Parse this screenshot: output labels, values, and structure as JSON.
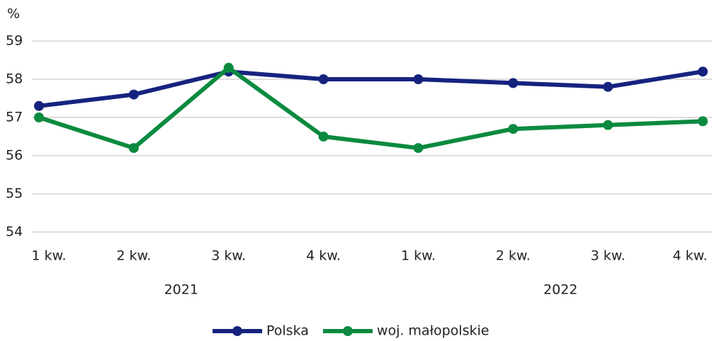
{
  "chart_data": {
    "type": "line",
    "y_axis_label": "%",
    "categories": [
      "1 kw.",
      "2 kw.",
      "3 kw.",
      "4 kw.",
      "1 kw.",
      "2 kw.",
      "3 kw.",
      "4 kw."
    ],
    "category_groups": [
      "2021",
      "2022"
    ],
    "series": [
      {
        "name": "Polska",
        "color": "#15237f",
        "values": [
          57.3,
          57.6,
          58.2,
          58.0,
          58.0,
          57.9,
          57.8,
          58.2
        ]
      },
      {
        "name": "woj. małopolskie",
        "color": "#0b8a3f",
        "values": [
          57.0,
          56.2,
          58.3,
          56.5,
          56.2,
          56.7,
          56.8,
          56.9
        ]
      }
    ],
    "ylim": [
      54,
      59
    ],
    "yticks": [
      54,
      55,
      56,
      57,
      58,
      59
    ],
    "grid": true,
    "legend": "bottom"
  }
}
